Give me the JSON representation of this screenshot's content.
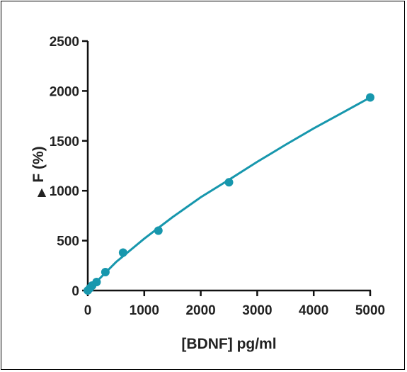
{
  "chart_data": {
    "type": "scatter",
    "title": "",
    "xlabel": "[BDNF] pg/ml",
    "ylabel": "F (%)",
    "ylabel_symbol": "▲",
    "xlim": [
      0,
      5000
    ],
    "ylim": [
      0,
      2500
    ],
    "x_ticks": [
      "0",
      "1000",
      "2000",
      "3000",
      "4000",
      "5000"
    ],
    "y_ticks": [
      "0",
      "500",
      "1000",
      "1500",
      "2000",
      "2500"
    ],
    "grid": false,
    "legend": "none",
    "series": [
      {
        "points": [
          {
            "x": 0,
            "y": 0
          },
          {
            "x": 39,
            "y": 25
          },
          {
            "x": 78,
            "y": 50
          },
          {
            "x": 156,
            "y": 85
          },
          {
            "x": 312,
            "y": 185
          },
          {
            "x": 625,
            "y": 380
          },
          {
            "x": 1250,
            "y": 600
          },
          {
            "x": 2500,
            "y": 1085
          },
          {
            "x": 5000,
            "y": 1935
          }
        ],
        "fit": [
          {
            "x": 0,
            "y": 0
          },
          {
            "x": 500,
            "y": 285
          },
          {
            "x": 1000,
            "y": 520
          },
          {
            "x": 1500,
            "y": 735
          },
          {
            "x": 2000,
            "y": 935
          },
          {
            "x": 2500,
            "y": 1110
          },
          {
            "x": 3000,
            "y": 1290
          },
          {
            "x": 3500,
            "y": 1460
          },
          {
            "x": 4000,
            "y": 1625
          },
          {
            "x": 4500,
            "y": 1780
          },
          {
            "x": 5000,
            "y": 1935
          }
        ],
        "color": "#1797ad"
      }
    ]
  }
}
